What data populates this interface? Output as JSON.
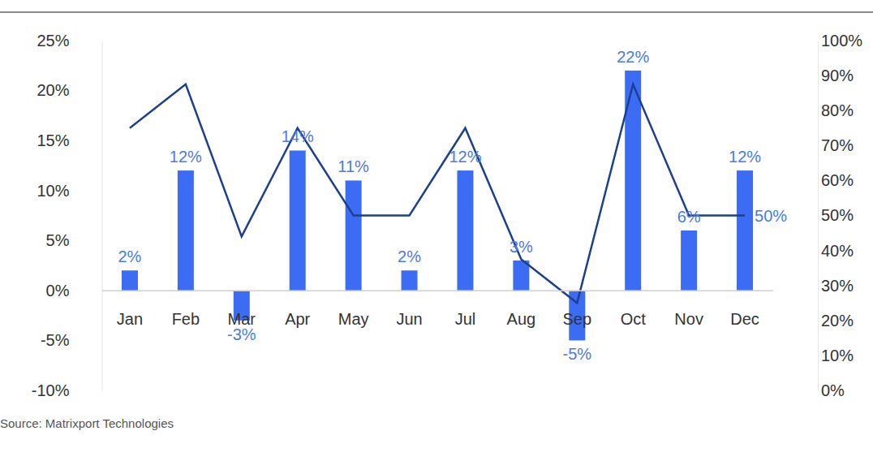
{
  "chart_data": {
    "type": "bar",
    "source": "Source: Matrixport Technologies",
    "categories": [
      "Jan",
      "Feb",
      "Mar",
      "Apr",
      "May",
      "Jun",
      "Jul",
      "Aug",
      "Sep",
      "Oct",
      "Nov",
      "Dec"
    ],
    "ylim": [
      -10,
      25
    ],
    "yticks": [
      {
        "value": -10,
        "label": "-10%"
      },
      {
        "value": -5,
        "label": "-5%"
      },
      {
        "value": 0,
        "label": "0%"
      },
      {
        "value": 5,
        "label": "5%"
      },
      {
        "value": 10,
        "label": "10%"
      },
      {
        "value": 15,
        "label": "15%"
      },
      {
        "value": 20,
        "label": "20%"
      },
      {
        "value": 25,
        "label": "25%"
      }
    ],
    "y2lim": [
      0,
      100
    ],
    "y2ticks": [
      {
        "value": 0,
        "label": "0%"
      },
      {
        "value": 10,
        "label": "10%"
      },
      {
        "value": 20,
        "label": "20%"
      },
      {
        "value": 30,
        "label": "30%"
      },
      {
        "value": 40,
        "label": "40%"
      },
      {
        "value": 50,
        "label": "50%"
      },
      {
        "value": 60,
        "label": "60%"
      },
      {
        "value": 70,
        "label": "70%"
      },
      {
        "value": 80,
        "label": "80%"
      },
      {
        "value": 90,
        "label": "90%"
      },
      {
        "value": 100,
        "label": "100%"
      }
    ],
    "data_labels": true,
    "series": [
      {
        "type": "bar",
        "color": "#3d6cf4",
        "values": [
          2,
          12,
          -3,
          14,
          11,
          2,
          12,
          3,
          -5,
          22,
          6,
          12
        ],
        "value_labels": [
          "2%",
          "12%",
          "-3%",
          "14%",
          "11%",
          "2%",
          "12%",
          "3%",
          "-5%",
          "22%",
          "6%",
          "12%"
        ]
      },
      {
        "type": "line",
        "axis": "y2",
        "color": "#1c3f8f",
        "values": [
          75,
          87.5,
          44,
          75,
          50,
          50,
          75,
          37.5,
          25,
          87.5,
          50,
          50
        ],
        "value_labels": [
          null,
          null,
          null,
          null,
          null,
          null,
          null,
          null,
          null,
          null,
          null,
          "50%"
        ]
      }
    ]
  }
}
